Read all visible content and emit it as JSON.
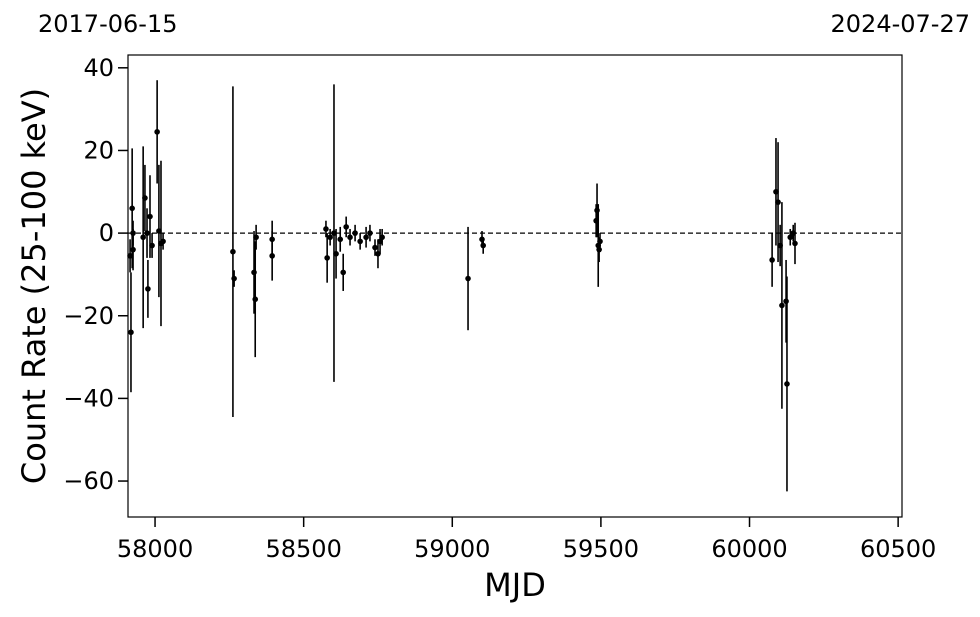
{
  "chart_data": {
    "type": "errorbar",
    "annotations": [
      "2017-06-15",
      "2024-07-27"
    ],
    "xlabel": "MJD",
    "ylabel": "Count Rate (25-100 keV)",
    "x": [
      57916,
      57919,
      57923,
      57926,
      57926,
      57960,
      57966,
      57973,
      57976,
      57983,
      57990,
      58007,
      58013,
      58020,
      58027,
      58262,
      58266,
      58333,
      58337,
      58340,
      58394,
      58394,
      58575,
      58579,
      58589,
      58602,
      58609,
      58623,
      58633,
      58643,
      58656,
      58673,
      58690,
      58710,
      58723,
      58740,
      58750,
      58757,
      58764,
      59053,
      59100,
      59104,
      59484,
      59487,
      59491,
      59494,
      59497,
      60076,
      60089,
      60096,
      60103,
      60109,
      60123,
      60126,
      60137,
      60147,
      60153
    ],
    "values": [
      -5.5,
      -24,
      6,
      -4,
      0,
      -1,
      8.5,
      0,
      -13.5,
      4,
      -3,
      24.5,
      0.5,
      -2.5,
      -2,
      -4.5,
      -11,
      -9.5,
      -16,
      -1,
      -1.5,
      -5.5,
      1,
      -6,
      -1,
      0,
      -5,
      -1.5,
      -9.5,
      1.5,
      -1,
      0,
      -2,
      -1,
      0,
      -3.5,
      -5,
      -2,
      -1,
      -11,
      -1.5,
      -3,
      3,
      5.5,
      -3,
      -4,
      -2,
      -6.5,
      10,
      7.5,
      -3,
      -17.5,
      -16.5,
      -36.5,
      -1,
      0,
      -2.5
    ],
    "errors": [
      4,
      14.5,
      14.5,
      5,
      3,
      22,
      8,
      6,
      7,
      10,
      3,
      12.5,
      16,
      20,
      2,
      40,
      2,
      10,
      14,
      3,
      4.5,
      6,
      2,
      6,
      2,
      36,
      6,
      3,
      4.5,
      2.5,
      2,
      2,
      2,
      2.5,
      2,
      2,
      3.5,
      3,
      2,
      12.5,
      2,
      2,
      4,
      6.5,
      10,
      3,
      2,
      6.5,
      13,
      14.5,
      5,
      25,
      10,
      26,
      2,
      2,
      5
    ],
    "color": "#000000",
    "reference_line": 0,
    "xlim": [
      57909,
      60513
    ],
    "ylim": [
      -68.7,
      43.1
    ],
    "xticks": [
      58000,
      58500,
      59000,
      59500,
      60000,
      60500
    ],
    "yticks": [
      {
        "value": -60,
        "label": "−60"
      },
      {
        "value": -40,
        "label": "−40"
      },
      {
        "value": -20,
        "label": "−20"
      },
      0,
      20,
      40
    ]
  }
}
